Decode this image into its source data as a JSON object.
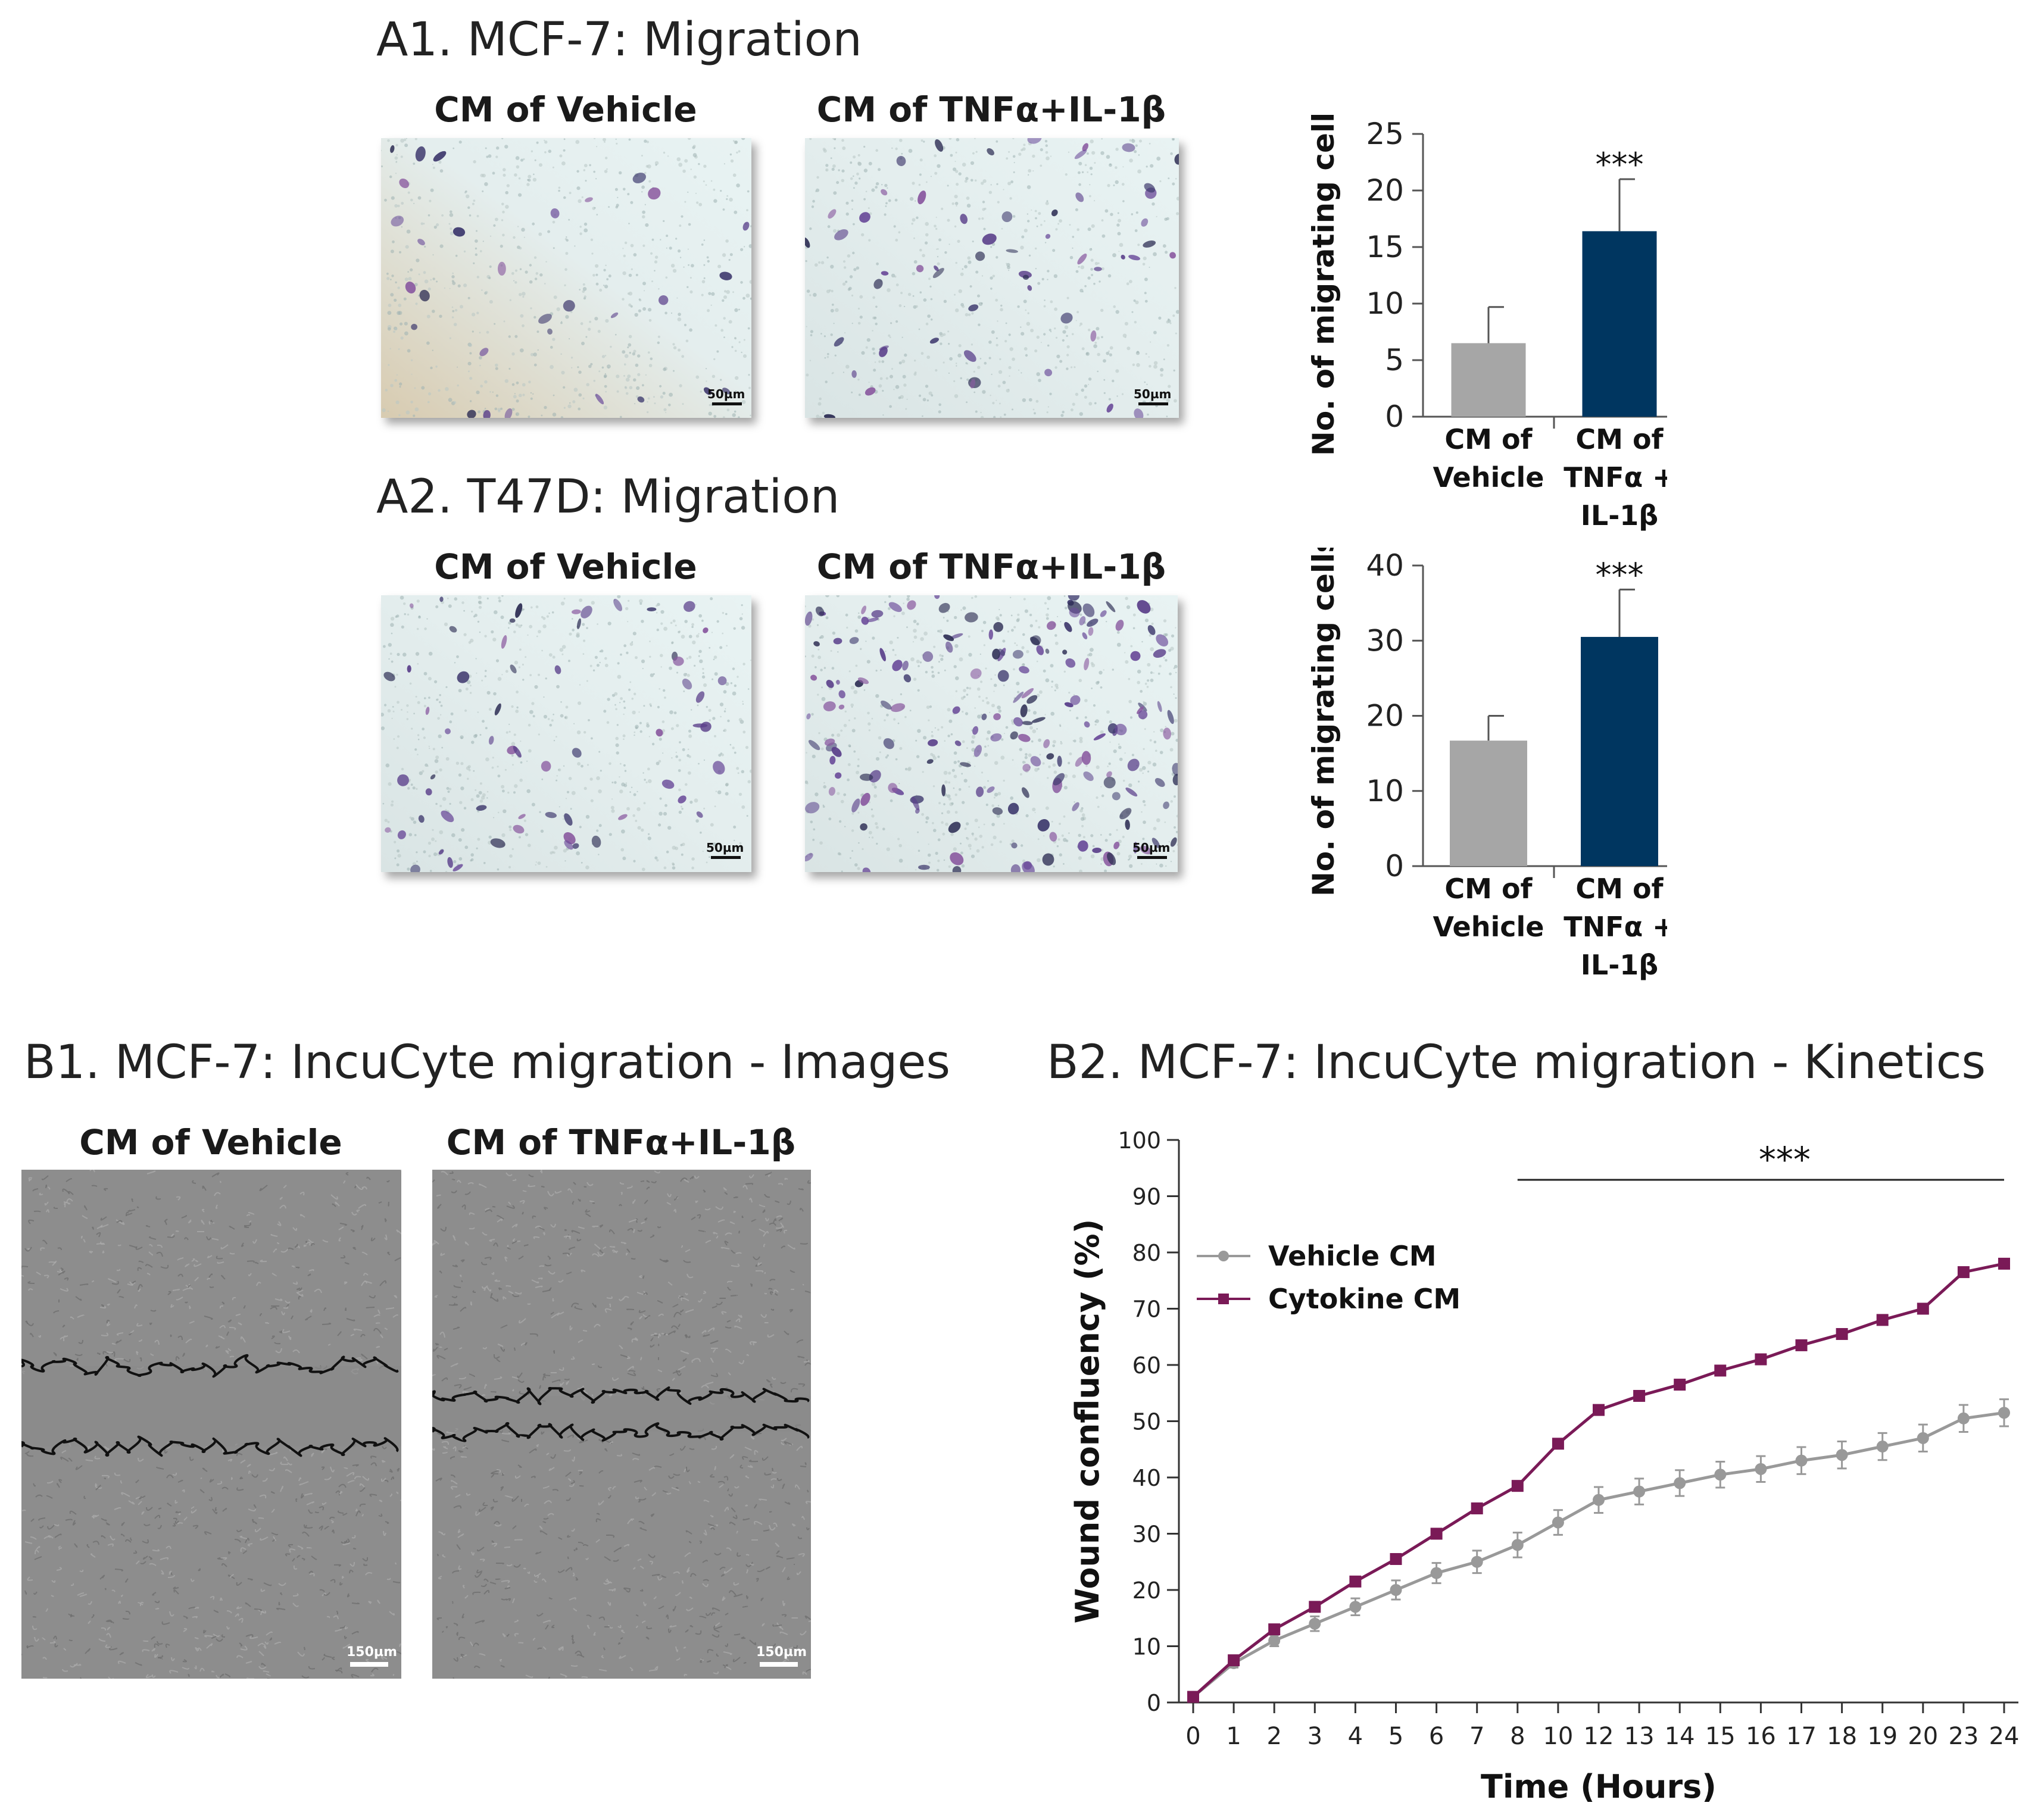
{
  "panelA1": {
    "title": "A1. MCF-7: Migration",
    "image_labels": [
      "CM of Vehicle",
      "CM of TNFα+IL-1β"
    ],
    "scalebar": "50µm"
  },
  "panelA2": {
    "title": "A2. T47D: Migration",
    "image_labels": [
      "CM of Vehicle",
      "CM of TNFα+IL-1β"
    ],
    "scalebar": "50µm"
  },
  "panelB1": {
    "title": "B1. MCF-7: IncuCyte migration - Images",
    "image_labels": [
      "CM of Vehicle",
      "CM of TNFα+IL-1β"
    ],
    "scalebar": "150µm"
  },
  "panelB2": {
    "title": "B2. MCF-7: IncuCyte migration - Kinetics"
  },
  "chart_data": [
    {
      "type": "bar",
      "panel": "A1",
      "categories": [
        [
          "CM of",
          "Vehicle"
        ],
        [
          "CM of",
          "TNFα +",
          "IL-1β"
        ]
      ],
      "values": [
        6.5,
        16.4
      ],
      "errors": [
        3.2,
        4.6
      ],
      "colors": [
        "#a6a6a6",
        "#003660"
      ],
      "significance": [
        "",
        "***"
      ],
      "ylabel": "No. of migrating cells",
      "ylim": [
        0,
        25
      ],
      "yticks": [
        0,
        5,
        10,
        15,
        20,
        25
      ]
    },
    {
      "type": "bar",
      "panel": "A2",
      "categories": [
        [
          "CM of",
          "Vehicle"
        ],
        [
          "CM of",
          "TNFα +",
          "IL-1β"
        ]
      ],
      "values": [
        16.7,
        30.5
      ],
      "errors": [
        3.3,
        6.3
      ],
      "colors": [
        "#a6a6a6",
        "#003660"
      ],
      "significance": [
        "",
        "***"
      ],
      "ylabel": "No. of migrating cells",
      "ylim": [
        0,
        40
      ],
      "yticks": [
        0,
        10,
        20,
        30,
        40
      ]
    },
    {
      "type": "line",
      "panel": "B2",
      "x": [
        "0",
        "1",
        "2",
        "3",
        "4",
        "5",
        "6",
        "7",
        "8",
        "10",
        "12",
        "13",
        "14",
        "15",
        "16",
        "17",
        "18",
        "19",
        "20",
        "23",
        "24"
      ],
      "series": [
        {
          "name": "Vehicle CM",
          "color": "#999999",
          "marker": "circle",
          "values": [
            1,
            7,
            11,
            14,
            17,
            20,
            23,
            25,
            28,
            32,
            36,
            37.5,
            39,
            40.5,
            41.5,
            43,
            44,
            45.5,
            47,
            50.5,
            51.5
          ],
          "errors": [
            0.5,
            0.8,
            1,
            1.3,
            1.5,
            1.7,
            1.8,
            2,
            2.2,
            2.2,
            2.3,
            2.3,
            2.3,
            2.3,
            2.3,
            2.4,
            2.4,
            2.4,
            2.4,
            2.4,
            2.4
          ]
        },
        {
          "name": "Cytokine CM",
          "color": "#7a1a57",
          "marker": "square",
          "values": [
            1,
            7.5,
            13,
            17,
            21.5,
            25.5,
            30,
            34.5,
            38.5,
            46,
            52,
            54.5,
            56.5,
            59,
            61,
            63.5,
            65.5,
            68,
            70,
            76.5,
            78
          ],
          "errors": [
            0.3,
            0.4,
            0.4,
            0.5,
            0.5,
            0.5,
            0.5,
            0.5,
            0.6,
            0.6,
            0.6,
            0.6,
            0.6,
            0.6,
            0.6,
            0.6,
            0.6,
            0.6,
            0.6,
            0.6,
            0.6
          ]
        }
      ],
      "significance": "***",
      "significance_range": [
        "8",
        "24"
      ],
      "xlabel": "Time (Hours)",
      "ylabel": "Wound confluency (%)",
      "ylim": [
        0,
        100
      ],
      "yticks": [
        0,
        10,
        20,
        30,
        40,
        50,
        60,
        70,
        80,
        90,
        100
      ],
      "legend": "top-left"
    }
  ]
}
